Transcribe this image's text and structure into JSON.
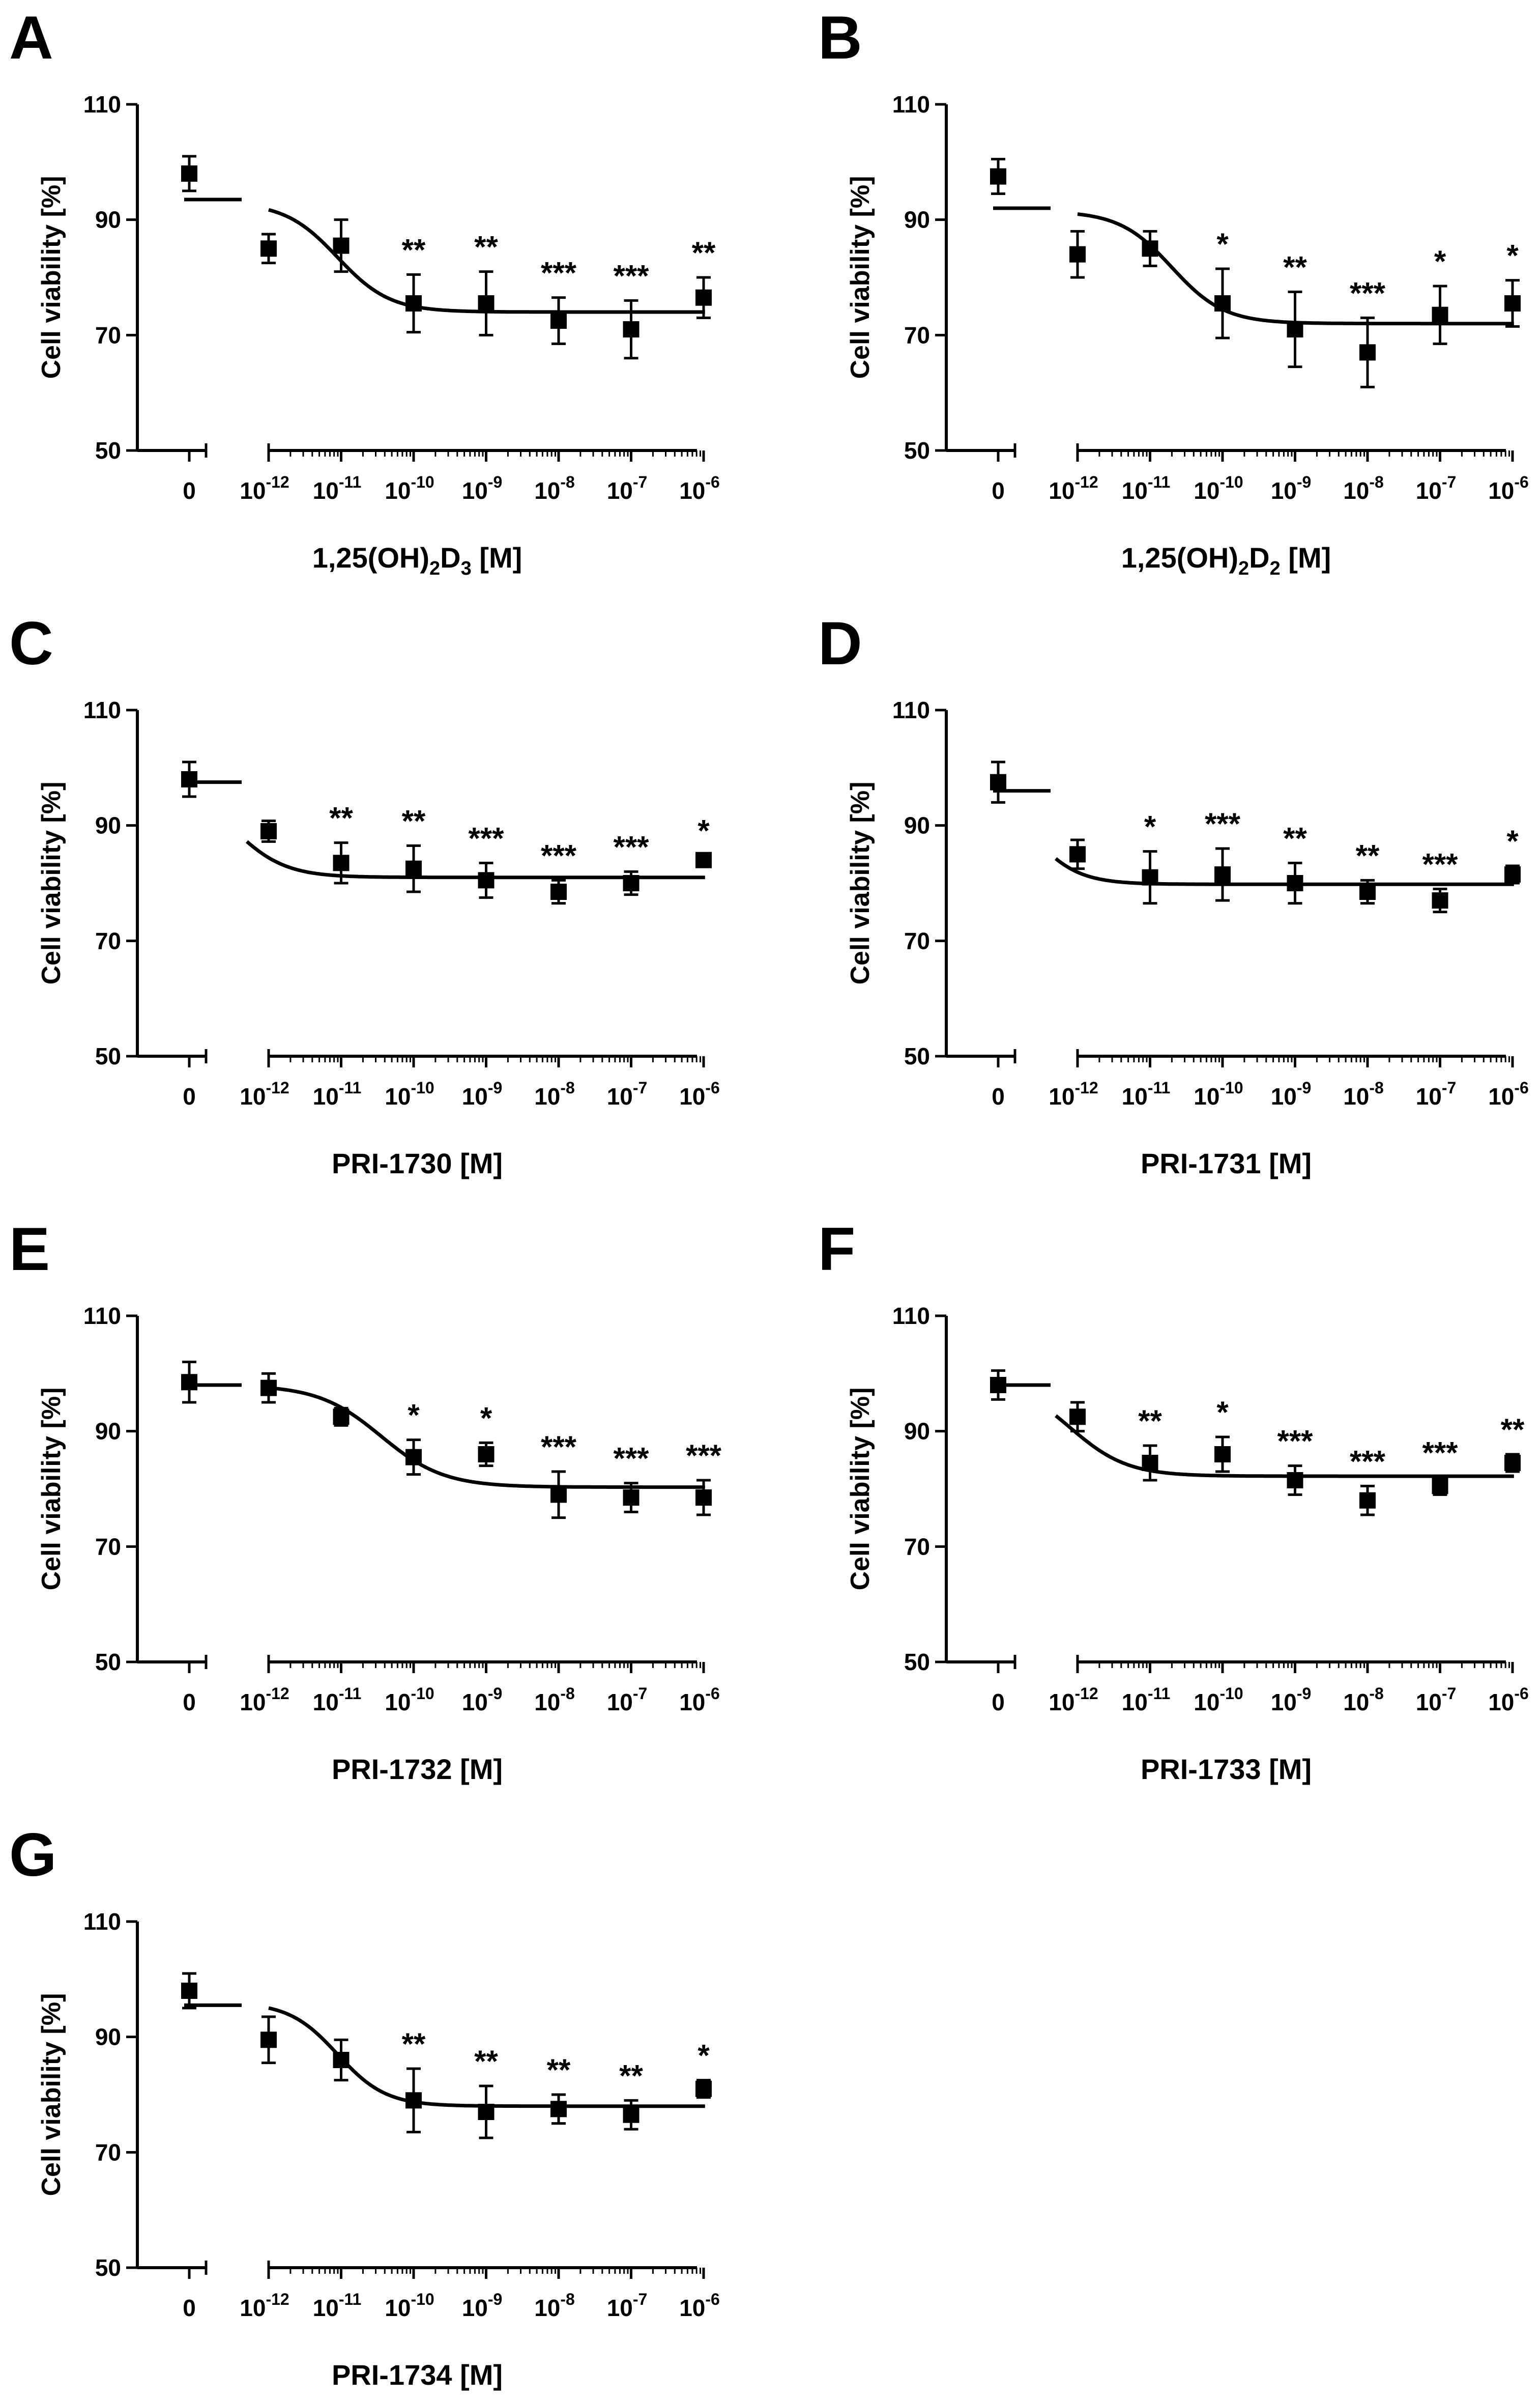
{
  "chart_data": [
    {
      "type": "scatter",
      "panel": "A",
      "ylabel": "Cell viability [%]",
      "xlabel": "1,25(OH)2D3 [M]",
      "xlabel_parts": [
        [
          "1,25(OH)",
          ""
        ],
        [
          "2",
          "sub"
        ],
        [
          "D",
          ""
        ],
        [
          "3",
          "sub"
        ],
        [
          "  [M]",
          ""
        ]
      ],
      "ylim": [
        50,
        110
      ],
      "yticks": [
        50,
        70,
        90,
        110
      ],
      "xticks": [
        "0",
        "-12",
        "-11",
        "-10",
        "-9",
        "-8",
        "-7",
        "-6"
      ],
      "control": {
        "mean": 98,
        "err": 3
      },
      "control_line": 93.5,
      "points": [
        {
          "log_conc": -12,
          "mean": 85,
          "err": 2.5,
          "sig": ""
        },
        {
          "log_conc": -11,
          "mean": 85.5,
          "err": 4.5,
          "sig": ""
        },
        {
          "log_conc": -10,
          "mean": 75.5,
          "err": 5,
          "sig": "**"
        },
        {
          "log_conc": -9,
          "mean": 75.5,
          "err": 5.5,
          "sig": "**"
        },
        {
          "log_conc": -8,
          "mean": 72.5,
          "err": 4,
          "sig": "***"
        },
        {
          "log_conc": -7,
          "mean": 71,
          "err": 5,
          "sig": "***"
        },
        {
          "log_conc": -6,
          "mean": 76.5,
          "err": 3.5,
          "sig": "**"
        }
      ],
      "fit": {
        "top": 93,
        "bottom": 74,
        "logEC50": -11.05,
        "hill": 1.2,
        "start": -12
      }
    },
    {
      "type": "scatter",
      "panel": "B",
      "ylabel": "Cell viability [%]",
      "xlabel": "1,25(OH)2D2 [M]",
      "xlabel_parts": [
        [
          "1,25(OH)",
          ""
        ],
        [
          "2",
          "sub"
        ],
        [
          "D",
          ""
        ],
        [
          "2",
          "sub"
        ],
        [
          "  [M]",
          ""
        ]
      ],
      "ylim": [
        50,
        110
      ],
      "yticks": [
        50,
        70,
        90,
        110
      ],
      "xticks": [
        "0",
        "-12",
        "-11",
        "-10",
        "-9",
        "-8",
        "-7",
        "-6"
      ],
      "control": {
        "mean": 97.5,
        "err": 3
      },
      "control_line": 92,
      "points": [
        {
          "log_conc": -12,
          "mean": 84,
          "err": 4,
          "sig": ""
        },
        {
          "log_conc": -11,
          "mean": 85,
          "err": 3,
          "sig": ""
        },
        {
          "log_conc": -10,
          "mean": 75.5,
          "err": 6,
          "sig": "*"
        },
        {
          "log_conc": -9,
          "mean": 71,
          "err": 6.5,
          "sig": "**"
        },
        {
          "log_conc": -8,
          "mean": 67,
          "err": 6,
          "sig": "***"
        },
        {
          "log_conc": -7,
          "mean": 73.5,
          "err": 5,
          "sig": "*"
        },
        {
          "log_conc": -6,
          "mean": 75.5,
          "err": 4,
          "sig": "*"
        }
      ],
      "fit": {
        "top": 91.5,
        "bottom": 72,
        "logEC50": -10.7,
        "hill": 1.2,
        "start": -12
      }
    },
    {
      "type": "scatter",
      "panel": "C",
      "ylabel": "Cell viability [%]",
      "xlabel": "PRI-1730 [M]",
      "xlabel_parts": [
        [
          "PRI-1730  [M]",
          ""
        ]
      ],
      "ylim": [
        50,
        110
      ],
      "yticks": [
        50,
        70,
        90,
        110
      ],
      "xticks": [
        "0",
        "-12",
        "-11",
        "-10",
        "-9",
        "-8",
        "-7",
        "-6"
      ],
      "control": {
        "mean": 98,
        "err": 3
      },
      "control_line": 97.5,
      "points": [
        {
          "log_conc": -12,
          "mean": 89,
          "err": 1.8,
          "sig": ""
        },
        {
          "log_conc": -11,
          "mean": 83.5,
          "err": 3.5,
          "sig": "**"
        },
        {
          "log_conc": -10,
          "mean": 82.5,
          "err": 4,
          "sig": "**"
        },
        {
          "log_conc": -9,
          "mean": 80.5,
          "err": 3,
          "sig": "***"
        },
        {
          "log_conc": -8,
          "mean": 78.5,
          "err": 2,
          "sig": "***"
        },
        {
          "log_conc": -7,
          "mean": 80,
          "err": 2,
          "sig": "***"
        },
        {
          "log_conc": -6,
          "mean": 84,
          "err": 0.8,
          "sig": "*"
        }
      ],
      "fit": {
        "top": 98,
        "bottom": 81,
        "logEC50": -12.5,
        "hill": 1.2,
        "start": -13
      }
    },
    {
      "type": "scatter",
      "panel": "D",
      "ylabel": "Cell viability [%]",
      "xlabel": "PRI-1731 [M]",
      "xlabel_parts": [
        [
          "PRI-1731  [M]",
          ""
        ]
      ],
      "ylim": [
        50,
        110
      ],
      "yticks": [
        50,
        70,
        90,
        110
      ],
      "xticks": [
        "0",
        "-12",
        "-11",
        "-10",
        "-9",
        "-8",
        "-7",
        "-6"
      ],
      "control": {
        "mean": 97.5,
        "err": 3.5
      },
      "control_line": 96,
      "points": [
        {
          "log_conc": -12,
          "mean": 85,
          "err": 2.5,
          "sig": ""
        },
        {
          "log_conc": -11,
          "mean": 81,
          "err": 4.5,
          "sig": "*"
        },
        {
          "log_conc": -10,
          "mean": 81.5,
          "err": 4.5,
          "sig": "***"
        },
        {
          "log_conc": -9,
          "mean": 80,
          "err": 3.5,
          "sig": "**"
        },
        {
          "log_conc": -8,
          "mean": 78.5,
          "err": 2,
          "sig": "**"
        },
        {
          "log_conc": -7,
          "mean": 77,
          "err": 2,
          "sig": "***"
        },
        {
          "log_conc": -6,
          "mean": 81.5,
          "err": 1.5,
          "sig": "*"
        }
      ],
      "fit": {
        "top": 99,
        "bottom": 79.8,
        "logEC50": -12.7,
        "hill": 1.3,
        "start": -13
      }
    },
    {
      "type": "scatter",
      "panel": "E",
      "ylabel": "Cell viability [%]",
      "xlabel": "PRI-1732 [M]",
      "xlabel_parts": [
        [
          "PRI-1732  [M]",
          ""
        ]
      ],
      "ylim": [
        50,
        110
      ],
      "yticks": [
        50,
        70,
        90,
        110
      ],
      "xticks": [
        "0",
        "-12",
        "-11",
        "-10",
        "-9",
        "-8",
        "-7",
        "-6"
      ],
      "control": {
        "mean": 98.5,
        "err": 3.5
      },
      "control_line": 98,
      "points": [
        {
          "log_conc": -12,
          "mean": 97.5,
          "err": 2.5,
          "sig": ""
        },
        {
          "log_conc": -11,
          "mean": 92.5,
          "err": 1.5,
          "sig": ""
        },
        {
          "log_conc": -10,
          "mean": 85.5,
          "err": 3,
          "sig": "*"
        },
        {
          "log_conc": -9,
          "mean": 86,
          "err": 2,
          "sig": "*"
        },
        {
          "log_conc": -8,
          "mean": 79,
          "err": 4,
          "sig": "***"
        },
        {
          "log_conc": -7,
          "mean": 78.5,
          "err": 2.5,
          "sig": "***"
        },
        {
          "log_conc": -6,
          "mean": 78.5,
          "err": 3,
          "sig": "***"
        }
      ],
      "fit": {
        "top": 98,
        "bottom": 80.3,
        "logEC50": -10.45,
        "hill": 1.0,
        "start": -12
      }
    },
    {
      "type": "scatter",
      "panel": "F",
      "ylabel": "Cell viability [%]",
      "xlabel": "PRI-1733 [M]",
      "xlabel_parts": [
        [
          "PRI-1733  [M]",
          ""
        ]
      ],
      "ylim": [
        50,
        110
      ],
      "yticks": [
        50,
        70,
        90,
        110
      ],
      "xticks": [
        "0",
        "-12",
        "-11",
        "-10",
        "-9",
        "-8",
        "-7",
        "-6"
      ],
      "control": {
        "mean": 98,
        "err": 2.5
      },
      "control_line": 98,
      "points": [
        {
          "log_conc": -12,
          "mean": 92.5,
          "err": 2.5,
          "sig": ""
        },
        {
          "log_conc": -11,
          "mean": 84.5,
          "err": 3,
          "sig": "**"
        },
        {
          "log_conc": -10,
          "mean": 86,
          "err": 3,
          "sig": "*"
        },
        {
          "log_conc": -9,
          "mean": 81.5,
          "err": 2.5,
          "sig": "***"
        },
        {
          "log_conc": -8,
          "mean": 78,
          "err": 2.5,
          "sig": "***"
        },
        {
          "log_conc": -7,
          "mean": 80.5,
          "err": 1.5,
          "sig": "***"
        },
        {
          "log_conc": -6,
          "mean": 84.5,
          "err": 1.5,
          "sig": "**"
        }
      ],
      "fit": {
        "top": 99,
        "bottom": 82.2,
        "logEC50": -12.1,
        "hill": 1.1,
        "start": -12.8
      }
    },
    {
      "type": "scatter",
      "panel": "G",
      "ylabel": "Cell viability [%]",
      "xlabel": "PRI-1734 [M]",
      "xlabel_parts": [
        [
          "PRI-1734  [M]",
          ""
        ]
      ],
      "ylim": [
        50,
        110
      ],
      "yticks": [
        50,
        70,
        90,
        110
      ],
      "xticks": [
        "0",
        "-12",
        "-11",
        "-10",
        "-9",
        "-8",
        "-7",
        "-6"
      ],
      "control": {
        "mean": 98,
        "err": 3
      },
      "control_line": 95.5,
      "points": [
        {
          "log_conc": -12,
          "mean": 89.5,
          "err": 4,
          "sig": ""
        },
        {
          "log_conc": -11,
          "mean": 86,
          "err": 3.5,
          "sig": ""
        },
        {
          "log_conc": -10,
          "mean": 79,
          "err": 5.5,
          "sig": "**"
        },
        {
          "log_conc": -9,
          "mean": 77,
          "err": 4.5,
          "sig": "**"
        },
        {
          "log_conc": -8,
          "mean": 77.5,
          "err": 2.5,
          "sig": "**"
        },
        {
          "log_conc": -7,
          "mean": 76.5,
          "err": 2.5,
          "sig": "**"
        },
        {
          "log_conc": -6,
          "mean": 81,
          "err": 1.5,
          "sig": "*"
        }
      ],
      "fit": {
        "top": 96,
        "bottom": 78,
        "logEC50": -11.05,
        "hill": 1.3,
        "start": -12
      }
    }
  ]
}
